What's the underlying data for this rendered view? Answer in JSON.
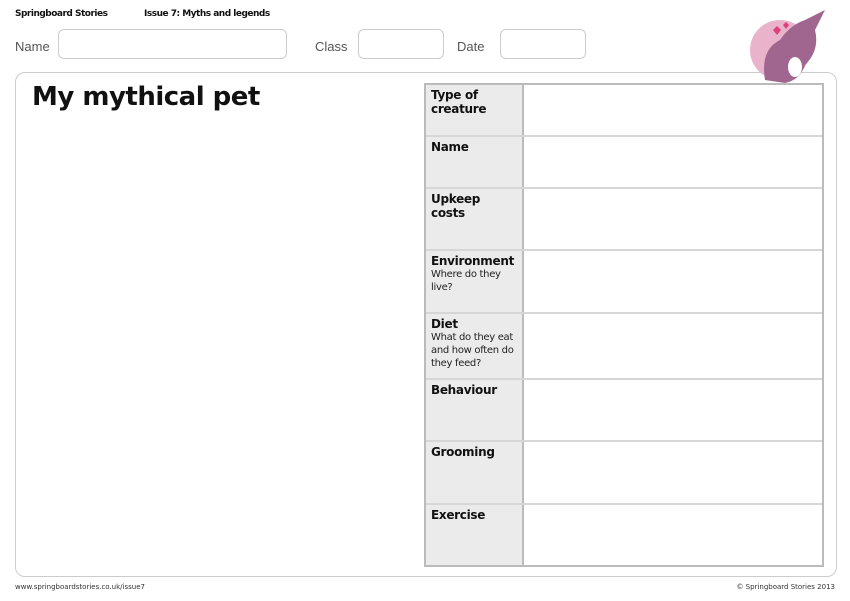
{
  "header": {
    "brand": "Springboard Stories",
    "issue": "Issue 7: Myths and legends"
  },
  "form": {
    "name_label": "Name",
    "class_label": "Class",
    "date_label": "Date"
  },
  "title": "My mythical pet",
  "rows": [
    {
      "label": "Type of creature",
      "sub": ""
    },
    {
      "label": "Name",
      "sub": ""
    },
    {
      "label": "Upkeep costs",
      "sub": ""
    },
    {
      "label": "Environment",
      "sub": "Where do they live?"
    },
    {
      "label": "Diet",
      "sub": "What do they eat and how often do they feed?"
    },
    {
      "label": "Behaviour",
      "sub": ""
    },
    {
      "label": "Grooming",
      "sub": ""
    },
    {
      "label": "Exercise",
      "sub": ""
    }
  ],
  "footer": {
    "url": "www.springboardstories.co.uk/issue7",
    "copyright": "© Springboard Stories 2013"
  }
}
